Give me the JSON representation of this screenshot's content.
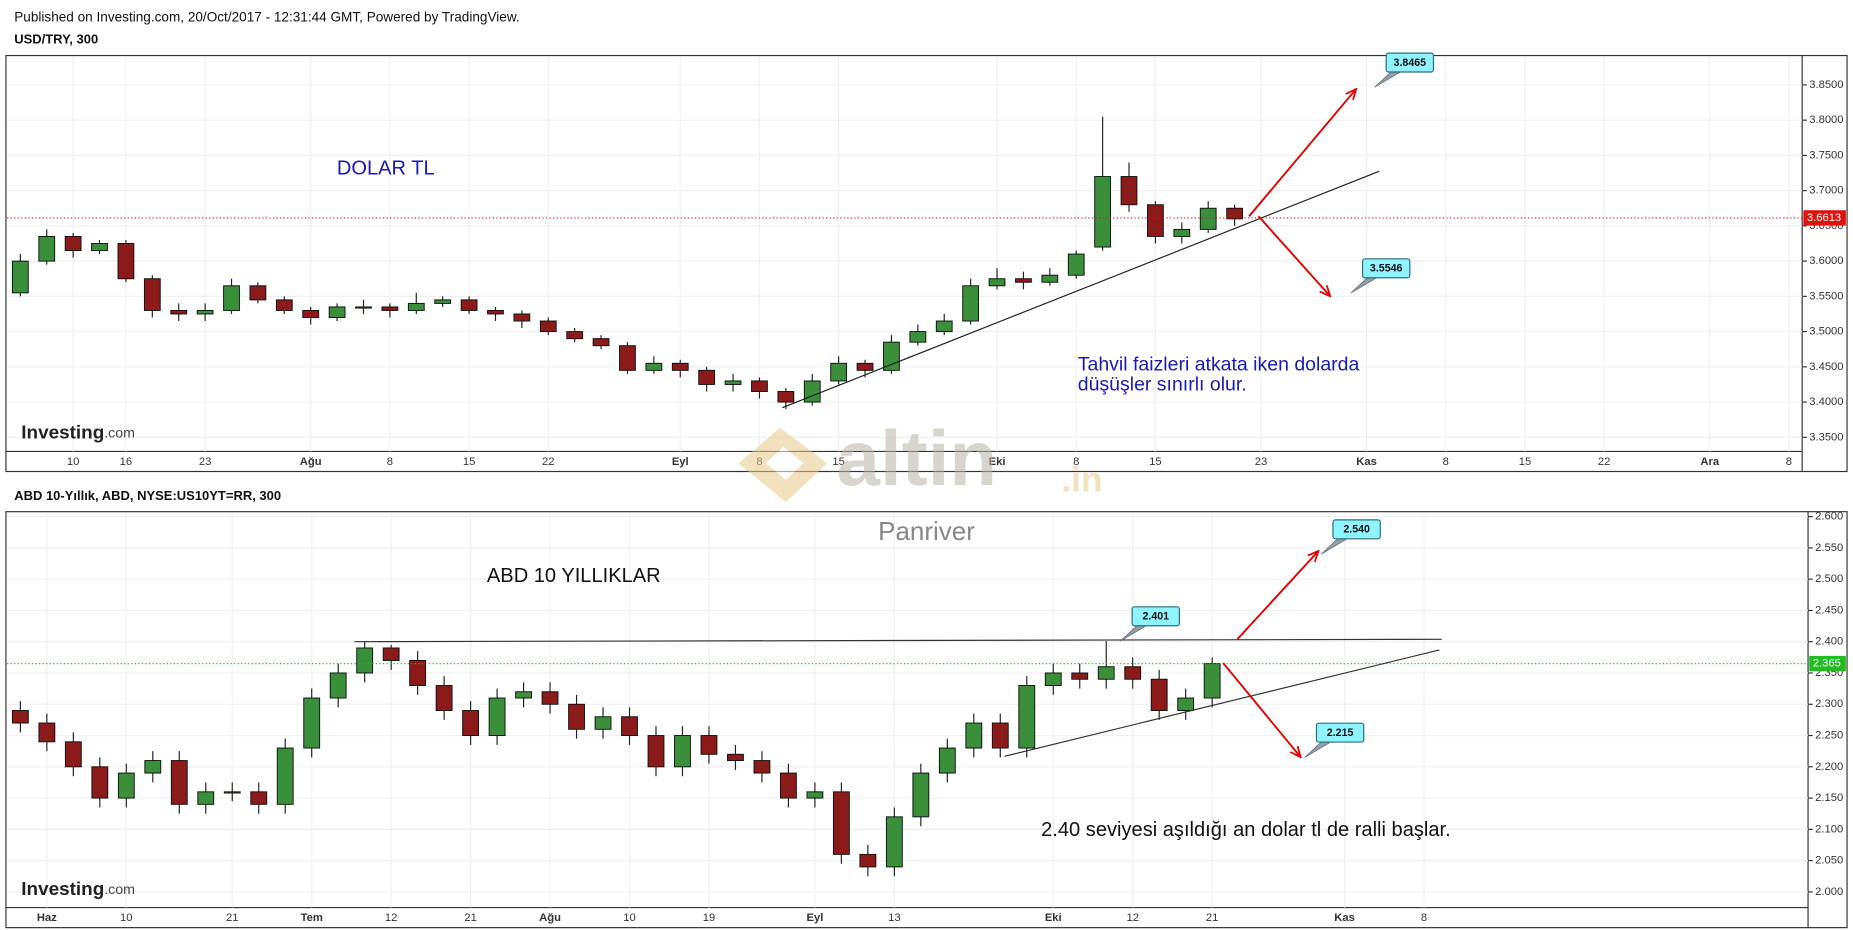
{
  "header": "Published on Investing.com, 20/Oct/2017 - 12:31:44 GMT, Powered by TradingView.",
  "watermark": [
    "altin",
    ".in"
  ],
  "logo": [
    "Investing",
    ".com"
  ],
  "chart_data": [
    {
      "type": "candlestick",
      "title": "USD/TRY, 300",
      "categories": [
        null,
        null,
        "10",
        null,
        "16",
        null,
        null,
        "23",
        null,
        null,
        null,
        "Ağu",
        null,
        null,
        "8",
        null,
        null,
        "15",
        null,
        null,
        "22",
        null,
        null,
        null,
        null,
        "Eyl",
        null,
        null,
        "8",
        null,
        null,
        "15",
        null,
        null,
        null,
        null,
        null,
        "Eki",
        null,
        null,
        "8",
        null,
        null,
        "15",
        null,
        null,
        null,
        "23",
        null,
        null,
        null,
        "Kas",
        null,
        null,
        "8",
        null,
        null,
        "15",
        null,
        null,
        "22",
        null,
        null,
        null,
        "Ara",
        null,
        null,
        "8"
      ],
      "open": [
        3.555,
        3.6,
        3.635,
        3.615,
        3.625,
        3.575,
        3.53,
        3.525,
        3.53,
        3.565,
        3.545,
        3.53,
        3.52,
        3.535,
        3.535,
        3.53,
        3.54,
        3.545,
        3.53,
        3.525,
        3.515,
        3.5,
        3.49,
        3.48,
        3.445,
        3.455,
        3.445,
        3.425,
        3.43,
        3.415,
        3.4,
        3.43,
        3.455,
        3.445,
        3.485,
        3.5,
        3.515,
        3.565,
        3.575,
        3.57,
        3.58,
        3.62,
        3.72,
        3.68,
        3.635,
        3.645,
        3.675,
        null,
        null,
        null,
        null,
        null,
        null,
        null,
        null,
        null,
        null,
        null,
        null,
        null,
        null,
        null,
        null,
        null,
        null,
        null,
        null,
        null
      ],
      "high": [
        3.61,
        3.645,
        3.64,
        3.63,
        3.63,
        3.58,
        3.54,
        3.54,
        3.575,
        3.57,
        3.55,
        3.535,
        3.54,
        3.545,
        3.54,
        3.555,
        3.55,
        3.55,
        3.535,
        3.53,
        3.52,
        3.505,
        3.495,
        3.485,
        3.465,
        3.46,
        3.45,
        3.44,
        3.435,
        3.42,
        3.44,
        3.465,
        3.46,
        3.495,
        3.51,
        3.525,
        3.575,
        3.59,
        3.585,
        3.59,
        3.615,
        3.805,
        3.74,
        3.685,
        3.655,
        3.685,
        3.68,
        null,
        null,
        null,
        null,
        null,
        null,
        null,
        null,
        null,
        null,
        null,
        null,
        null,
        null,
        null,
        null,
        null,
        null,
        null,
        null,
        null
      ],
      "low": [
        3.55,
        3.595,
        3.605,
        3.61,
        3.57,
        3.52,
        3.515,
        3.515,
        3.525,
        3.54,
        3.525,
        3.51,
        3.515,
        3.525,
        3.52,
        3.525,
        3.535,
        3.525,
        3.515,
        3.505,
        3.495,
        3.485,
        3.475,
        3.44,
        3.44,
        3.435,
        3.415,
        3.415,
        3.405,
        3.39,
        3.395,
        3.425,
        3.435,
        3.44,
        3.48,
        3.495,
        3.51,
        3.56,
        3.56,
        3.565,
        3.575,
        3.615,
        3.67,
        3.625,
        3.625,
        3.64,
        3.65,
        null,
        null,
        null,
        null,
        null,
        null,
        null,
        null,
        null,
        null,
        null,
        null,
        null,
        null,
        null,
        null,
        null,
        null,
        null,
        null,
        null
      ],
      "close": [
        3.6,
        3.635,
        3.615,
        3.625,
        3.575,
        3.53,
        3.525,
        3.53,
        3.565,
        3.545,
        3.53,
        3.52,
        3.535,
        3.535,
        3.53,
        3.54,
        3.545,
        3.53,
        3.525,
        3.515,
        3.5,
        3.49,
        3.48,
        3.445,
        3.455,
        3.445,
        3.425,
        3.43,
        3.415,
        3.4,
        3.43,
        3.455,
        3.445,
        3.485,
        3.5,
        3.515,
        3.565,
        3.575,
        3.57,
        3.58,
        3.61,
        3.72,
        3.68,
        3.635,
        3.645,
        3.675,
        3.66,
        null,
        null,
        null,
        null,
        null,
        null,
        null,
        null,
        null,
        null,
        null,
        null,
        null,
        null,
        null,
        null,
        null,
        null,
        null,
        null,
        null
      ],
      "up_color": "#3a8f3a",
      "down_color": "#8b1a1a",
      "ylim": [
        3.33,
        3.89
      ],
      "yticks": [
        {
          "value": 3.35,
          "label": "3.3500"
        },
        {
          "value": 3.4,
          "label": "3.4000"
        },
        {
          "value": 3.45,
          "label": "3.4500"
        },
        {
          "value": 3.5,
          "label": "3.5000"
        },
        {
          "value": 3.55,
          "label": "3.5500"
        },
        {
          "value": 3.6,
          "label": "3.6000"
        },
        {
          "value": 3.65,
          "label": "3.6500"
        },
        {
          "value": 3.7,
          "label": "3.7000"
        },
        {
          "value": 3.75,
          "label": "3.7500"
        },
        {
          "value": 3.8,
          "label": "3.8000"
        },
        {
          "value": 3.85,
          "label": "3.8500"
        }
      ],
      "grid": true,
      "last": 3.6613,
      "last_color": "#e31010",
      "annotations": [
        "DOLAR TL",
        "Tahvil faizleri atkata iken dolarda",
        "düşüşler sınırlı olur."
      ],
      "callouts": [
        3.8465,
        3.5546
      ]
    },
    {
      "type": "candlestick",
      "title": "ABD 10-Yıllık, ABD, NYSE:US10YT=RR, 300",
      "categories": [
        null,
        "Haz",
        null,
        null,
        "10",
        null,
        null,
        null,
        "21",
        null,
        null,
        "Tem",
        null,
        null,
        "12",
        null,
        null,
        "21",
        null,
        null,
        "Ağu",
        null,
        null,
        "10",
        null,
        null,
        "19",
        null,
        null,
        null,
        "Eyl",
        null,
        null,
        "13",
        null,
        null,
        null,
        null,
        null,
        "Eki",
        null,
        null,
        "12",
        null,
        null,
        "21",
        null,
        null,
        null,
        null,
        "Kas",
        null,
        null,
        "8",
        null,
        null,
        null,
        null,
        null,
        null,
        null,
        null,
        null,
        null,
        null,
        null,
        null,
        null
      ],
      "open": [
        2.29,
        2.27,
        2.24,
        2.2,
        2.15,
        2.19,
        2.21,
        2.14,
        2.16,
        2.16,
        2.14,
        2.23,
        2.31,
        2.35,
        2.39,
        2.37,
        2.33,
        2.29,
        2.25,
        2.31,
        2.32,
        2.3,
        2.26,
        2.28,
        2.25,
        2.2,
        2.25,
        2.22,
        2.21,
        2.19,
        2.15,
        2.16,
        2.06,
        2.04,
        2.12,
        2.19,
        2.23,
        2.27,
        2.23,
        2.33,
        2.35,
        2.34,
        2.36,
        2.34,
        2.29,
        2.31,
        null,
        null,
        null,
        null,
        null,
        null,
        null,
        null,
        null,
        null,
        null,
        null,
        null,
        null,
        null,
        null,
        null,
        null,
        null,
        null,
        null,
        null
      ],
      "high": [
        2.305,
        2.285,
        2.255,
        2.215,
        2.205,
        2.225,
        2.225,
        2.175,
        2.175,
        2.175,
        2.245,
        2.325,
        2.365,
        2.4,
        2.395,
        2.385,
        2.345,
        2.305,
        2.325,
        2.335,
        2.335,
        2.315,
        2.295,
        2.295,
        2.265,
        2.265,
        2.265,
        2.235,
        2.225,
        2.205,
        2.175,
        2.175,
        2.075,
        2.135,
        2.205,
        2.245,
        2.285,
        2.285,
        2.345,
        2.365,
        2.365,
        2.401,
        2.375,
        2.355,
        2.325,
        2.375,
        null,
        null,
        null,
        null,
        null,
        null,
        null,
        null,
        null,
        null,
        null,
        null,
        null,
        null,
        null,
        null,
        null,
        null,
        null,
        null,
        null,
        null
      ],
      "low": [
        2.255,
        2.225,
        2.185,
        2.135,
        2.135,
        2.175,
        2.125,
        2.125,
        2.145,
        2.125,
        2.125,
        2.215,
        2.295,
        2.335,
        2.355,
        2.315,
        2.275,
        2.235,
        2.235,
        2.295,
        2.285,
        2.245,
        2.245,
        2.235,
        2.185,
        2.185,
        2.205,
        2.195,
        2.175,
        2.135,
        2.135,
        2.045,
        2.025,
        2.025,
        2.105,
        2.175,
        2.215,
        2.215,
        2.215,
        2.315,
        2.325,
        2.325,
        2.325,
        2.275,
        2.275,
        2.295,
        null,
        null,
        null,
        null,
        null,
        null,
        null,
        null,
        null,
        null,
        null,
        null,
        null,
        null,
        null,
        null,
        null,
        null,
        null,
        null,
        null,
        null
      ],
      "close": [
        2.27,
        2.24,
        2.2,
        2.15,
        2.19,
        2.21,
        2.14,
        2.16,
        2.16,
        2.14,
        2.23,
        2.31,
        2.35,
        2.39,
        2.37,
        2.33,
        2.29,
        2.25,
        2.31,
        2.32,
        2.3,
        2.26,
        2.28,
        2.25,
        2.2,
        2.25,
        2.22,
        2.21,
        2.19,
        2.15,
        2.16,
        2.06,
        2.04,
        2.12,
        2.19,
        2.23,
        2.27,
        2.23,
        2.33,
        2.35,
        2.34,
        2.36,
        2.34,
        2.29,
        2.31,
        2.365,
        null,
        null,
        null,
        null,
        null,
        null,
        null,
        null,
        null,
        null,
        null,
        null,
        null,
        null,
        null,
        null,
        null,
        null,
        null,
        null,
        null,
        null
      ],
      "up_color": "#3a8f3a",
      "down_color": "#8b1a1a",
      "ylim": [
        1.975,
        2.606
      ],
      "yticks": [
        {
          "value": 2.0,
          "label": "2.000"
        },
        {
          "value": 2.05,
          "label": "2.050"
        },
        {
          "value": 2.1,
          "label": "2.100"
        },
        {
          "value": 2.15,
          "label": "2.150"
        },
        {
          "value": 2.2,
          "label": "2.200"
        },
        {
          "value": 2.25,
          "label": "2.250"
        },
        {
          "value": 2.3,
          "label": "2.300"
        },
        {
          "value": 2.35,
          "label": "2.350"
        },
        {
          "value": 2.4,
          "label": "2.400"
        },
        {
          "value": 2.45,
          "label": "2.450"
        },
        {
          "value": 2.5,
          "label": "2.500"
        },
        {
          "value": 2.55,
          "label": "2.550"
        },
        {
          "value": 2.6,
          "label": "2.600"
        }
      ],
      "grid": true,
      "last": 2.365,
      "last_color": "#22bb22",
      "annotations": [
        "Panriver",
        "ABD 10 YILLIKLAR",
        "2.40 seviyesi aşıldığı an dolar tl de ralli başlar."
      ],
      "callouts": [
        {
          "value": 2.54,
          "label": "2.540"
        },
        2.401,
        2.215
      ]
    }
  ]
}
